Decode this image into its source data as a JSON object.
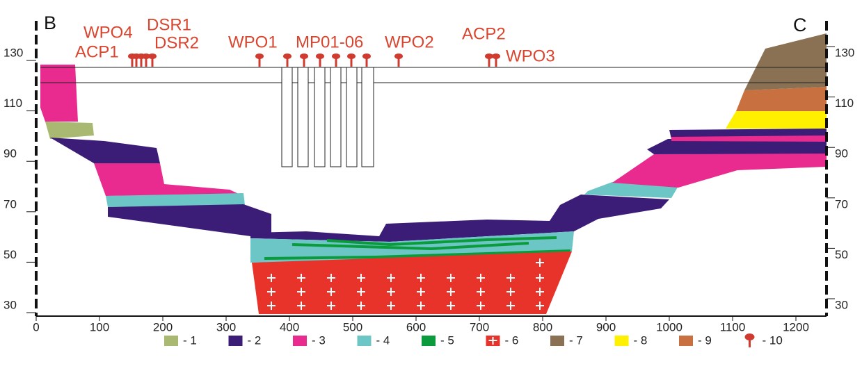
{
  "corners": {
    "left": "B",
    "right": "C"
  },
  "wells": [
    "WPO4",
    "DSR1",
    "ACP1",
    "DSR2",
    "WPO1",
    "MP01-06",
    "WPO2",
    "ACP2",
    "WPO3"
  ],
  "left_axis": [
    130,
    110,
    90,
    70,
    50,
    30
  ],
  "right_axis": [
    130,
    110,
    90,
    70,
    50,
    30
  ],
  "bottom_axis": [
    0,
    100,
    200,
    300,
    400,
    500,
    600,
    700,
    800,
    900,
    1000,
    1100,
    1200
  ],
  "legend": [
    {
      "label": "- 1",
      "color": "#a9b972"
    },
    {
      "label": "- 2",
      "color": "#3b1d78"
    },
    {
      "label": "- 3",
      "color": "#e92a8e"
    },
    {
      "label": "- 4",
      "color": "#6cc6c6"
    },
    {
      "label": "- 5",
      "color": "#0c9b3c"
    },
    {
      "label": "- 6",
      "color": "#e8332b"
    },
    {
      "label": "- 7",
      "color": "#8a7153"
    },
    {
      "label": "- 8",
      "color": "#fff000"
    },
    {
      "label": "- 9",
      "color": "#c8703f"
    },
    {
      "label": "- 10",
      "color": "#d13a2f"
    }
  ]
}
